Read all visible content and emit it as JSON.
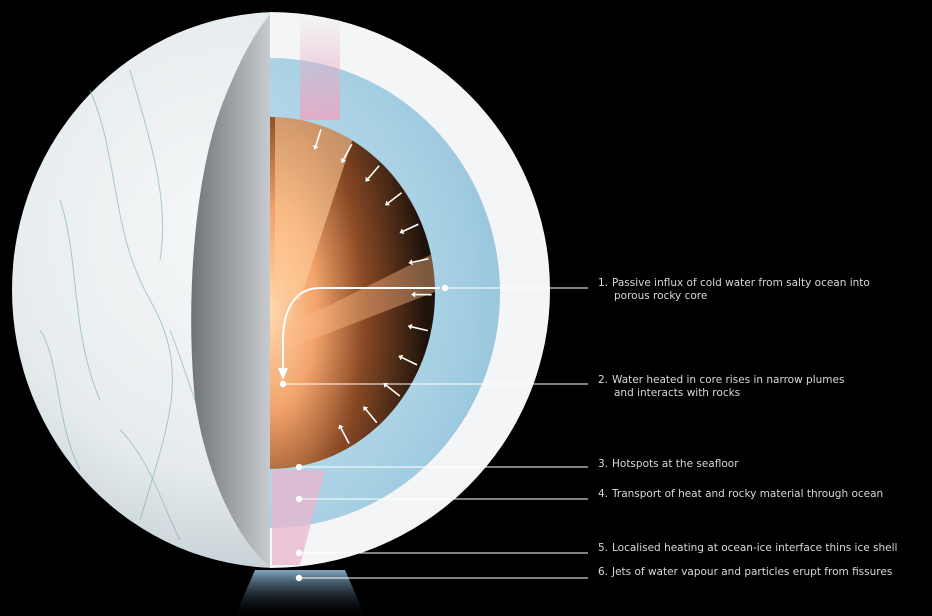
{
  "callouts": [
    {
      "number": "1.",
      "lines": [
        "Passive influx of cold water from salty ocean into",
        "porous rocky core"
      ]
    },
    {
      "number": "2.",
      "lines": [
        "Water heated in core rises in narrow plumes",
        "and interacts with rocks"
      ]
    },
    {
      "number": "3.",
      "lines": [
        "Hotspots at the seafloor"
      ]
    },
    {
      "number": "4.",
      "lines": [
        "Transport of heat and rocky material through ocean"
      ]
    },
    {
      "number": "5.",
      "lines": [
        "Localised heating at ocean-ice interface thins ice shell"
      ]
    },
    {
      "number": "6.",
      "lines": [
        "Jets of water vapour and particles erupt from fissures"
      ]
    }
  ],
  "colors": {
    "background": "#000000",
    "ice_surface": "#e9eef0",
    "ice_shell_section": "#f4f6f7",
    "ocean": "#a9d1e4",
    "core_glow": "#f2b07a",
    "core_dark": "#2a1a10",
    "leader_line": "#ffffff",
    "label_text": "#d8d8d8"
  }
}
